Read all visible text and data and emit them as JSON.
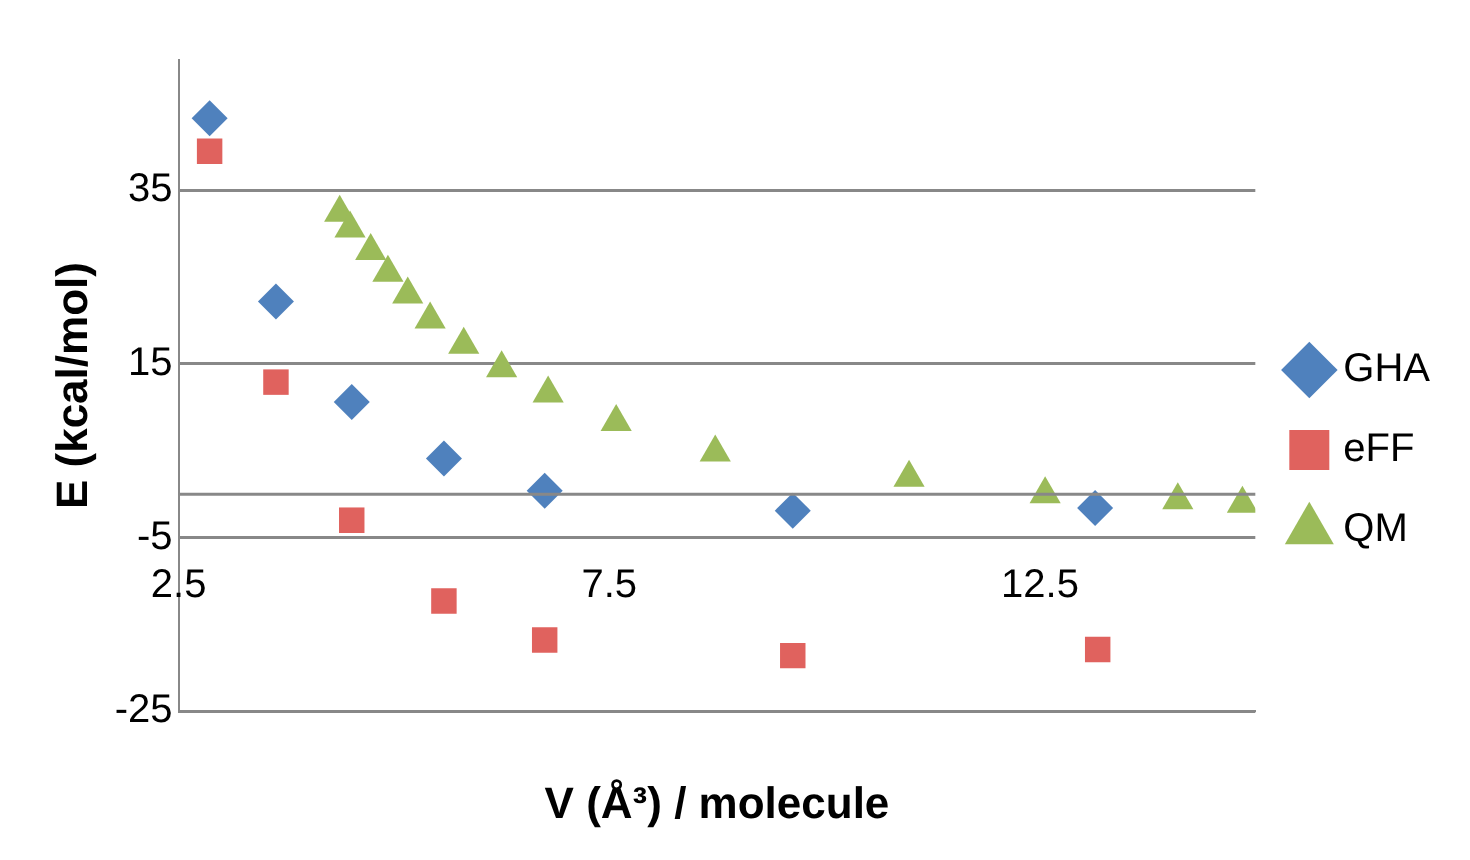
{
  "chart_data": {
    "type": "scatter",
    "xlabel": "V (Å³) / molecule",
    "ylabel": "E (kcal/mol)",
    "xlim": [
      2.5,
      15
    ],
    "xticks": [
      2.5,
      7.5,
      12.5
    ],
    "ylim": [
      -25,
      50
    ],
    "yticks": [
      -25,
      -5,
      15,
      35
    ],
    "grid": "y",
    "legend": "right",
    "series": [
      {
        "name": "GHA",
        "color": "#4f81bd",
        "marker": "diamond",
        "x": [
          2.86,
          3.63,
          4.51,
          5.58,
          6.75,
          9.63,
          13.14
        ],
        "values": [
          43.3,
          22.2,
          10.6,
          4.1,
          0.4,
          -1.9,
          -1.6
        ]
      },
      {
        "name": "eFF",
        "color": "#e0625e",
        "marker": "square",
        "x": [
          2.86,
          3.63,
          4.51,
          5.58,
          6.75,
          9.63,
          13.17
        ],
        "values": [
          39.5,
          12.9,
          -3.0,
          -12.3,
          -16.8,
          -18.6,
          -17.9
        ]
      },
      {
        "name": "QM",
        "color": "#9bbb59",
        "marker": "triangle",
        "x": [
          4.37,
          4.49,
          4.73,
          4.93,
          5.16,
          5.42,
          5.81,
          6.25,
          6.79,
          7.58,
          8.73,
          10.98,
          12.56,
          14.1,
          14.85
        ],
        "values": [
          32.4,
          30.6,
          28.0,
          25.5,
          23.0,
          20.1,
          17.2,
          14.5,
          11.6,
          8.3,
          4.8,
          1.9,
          0,
          -0.7,
          -1.1
        ]
      }
    ]
  }
}
